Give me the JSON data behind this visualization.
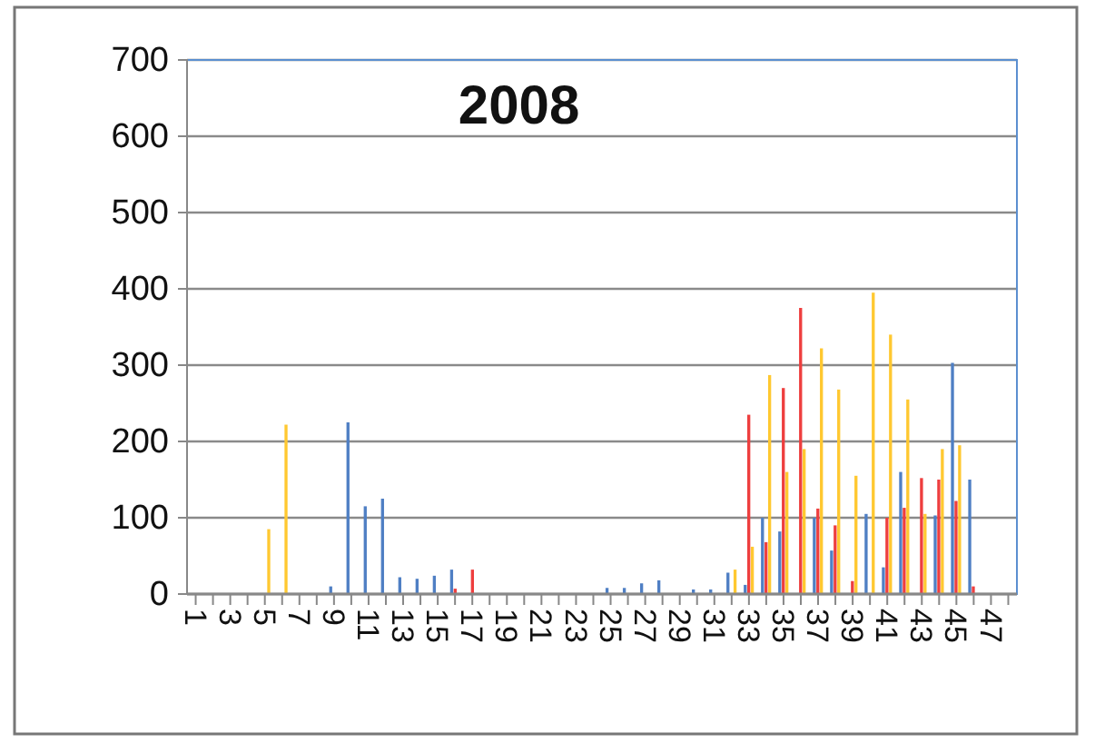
{
  "chart_data": {
    "type": "bar",
    "title": "2008",
    "categories": [
      "1",
      null,
      "3",
      null,
      "5",
      null,
      "7",
      null,
      "9",
      null,
      "11",
      null,
      "13",
      null,
      "15",
      null,
      "17",
      null,
      "19",
      null,
      "21",
      null,
      "23",
      null,
      "25",
      null,
      "27",
      null,
      "29",
      null,
      "31",
      null,
      "33",
      null,
      "35",
      null,
      "37",
      null,
      "39",
      null,
      "41",
      null,
      "43",
      null,
      "45",
      null,
      "47",
      null
    ],
    "series": [
      {
        "color": "#4f7fc4",
        "values": [
          0,
          0,
          0,
          0,
          0,
          0,
          0,
          0,
          10,
          225,
          115,
          125,
          22,
          20,
          24,
          32,
          null,
          0,
          0,
          0,
          0,
          0,
          0,
          0,
          8,
          8,
          14,
          18,
          0,
          6,
          6,
          28,
          12,
          100,
          82,
          0,
          100,
          57,
          0,
          105,
          35,
          160,
          0,
          103,
          303,
          150,
          0,
          0
        ]
      },
      {
        "color": "#ee3e3e",
        "values": [
          0,
          0,
          0,
          0,
          0,
          0,
          0,
          0,
          0,
          0,
          0,
          0,
          0,
          0,
          0,
          7,
          32,
          0,
          0,
          0,
          0,
          0,
          0,
          0,
          0,
          0,
          0,
          0,
          0,
          0,
          0,
          0,
          235,
          68,
          270,
          375,
          112,
          90,
          17,
          0,
          100,
          113,
          152,
          150,
          122,
          10,
          0,
          0
        ]
      },
      {
        "color": "#ffc830",
        "values": [
          0,
          0,
          0,
          0,
          85,
          222,
          0,
          0,
          0,
          0,
          0,
          0,
          0,
          0,
          0,
          0,
          0,
          0,
          0,
          0,
          0,
          0,
          0,
          0,
          0,
          0,
          0,
          0,
          0,
          0,
          0,
          32,
          62,
          287,
          160,
          190,
          322,
          268,
          155,
          395,
          340,
          255,
          105,
          190,
          195,
          0,
          0,
          0
        ]
      }
    ],
    "ylim": [
      0,
      700
    ],
    "yticks": [
      0,
      100,
      200,
      300,
      400,
      500,
      600,
      700
    ],
    "grid": "y"
  }
}
